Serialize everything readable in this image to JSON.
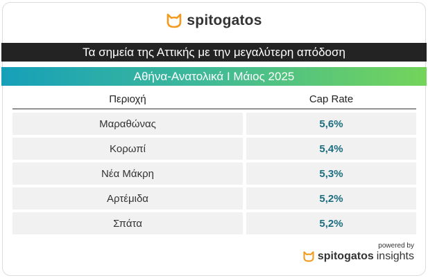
{
  "header": {
    "brand": "spitogatos",
    "title": "Τα σημεία της Αττικής με την μεγαλύτερη απόδοση",
    "subtitle": "Αθήνα-Ανατολικά Ι Μάιος 2025"
  },
  "table": {
    "columns": [
      "Περιοχή",
      "Cap Rate"
    ],
    "rows": [
      [
        "Μαραθώνας",
        "5,6%"
      ],
      [
        "Κορωπί",
        "5,4%"
      ],
      [
        "Νέα Μάκρη",
        "5,3%"
      ],
      [
        "Αρτέμιδα",
        "5,2%"
      ],
      [
        "Σπάτα",
        "5,2%"
      ]
    ]
  },
  "footer": {
    "powered_by": "powered by",
    "brand": "spitogatos",
    "suffix": "insights"
  }
}
